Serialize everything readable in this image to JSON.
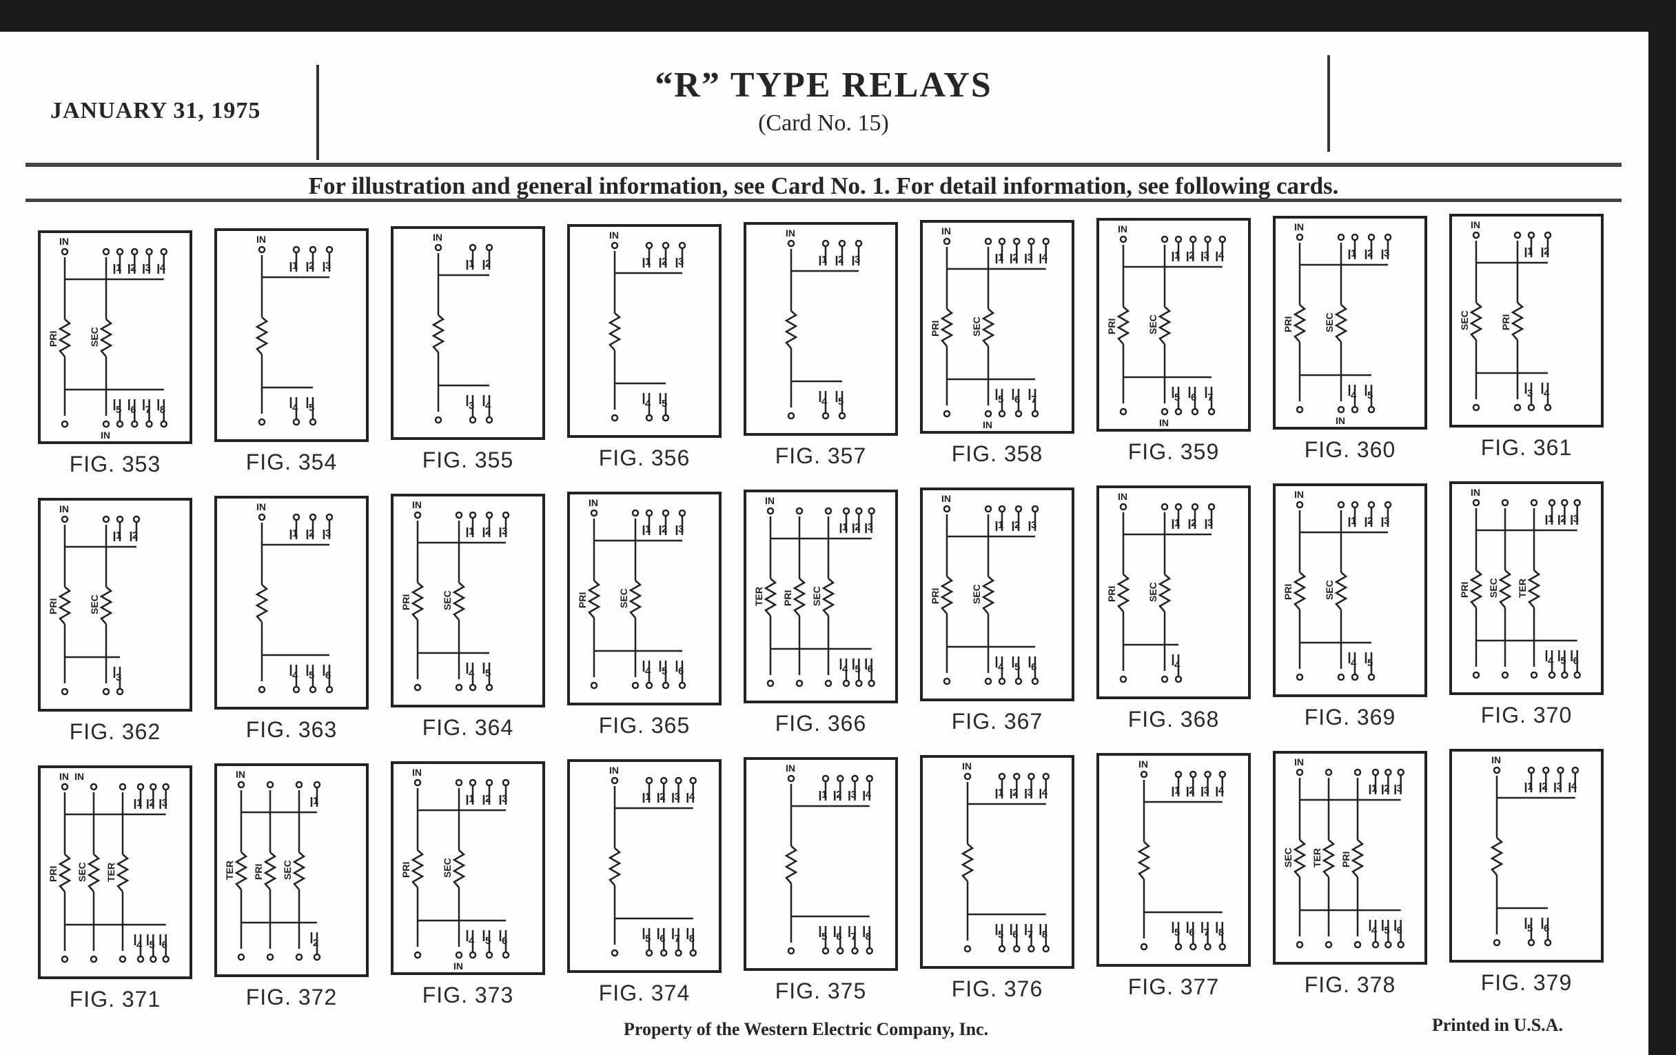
{
  "header": {
    "date": "JANUARY 31, 1975",
    "title": "“R” TYPE RELAYS",
    "subtitle": "(Card No. 15)",
    "info": "For illustration and general information, see Card No. 1.  For detail information, see following cards."
  },
  "figures": [
    {
      "label": "FIG. 353",
      "top_in": [
        "IN"
      ],
      "top": [
        "1",
        "2",
        "3",
        "4"
      ],
      "coils": [
        "PRI",
        "SEC"
      ],
      "bottom": [
        "5",
        "6",
        "7",
        "8"
      ],
      "bottom_in": "IN"
    },
    {
      "label": "FIG. 354",
      "top_in": [
        "IN"
      ],
      "top": [
        "1",
        "2",
        "3"
      ],
      "coils": [
        ""
      ],
      "bottom": [
        "4",
        "5"
      ]
    },
    {
      "label": "FIG. 355",
      "top_in": [
        "IN"
      ],
      "top": [
        "1",
        "2"
      ],
      "coils": [
        ""
      ],
      "bottom": [
        "3",
        "4"
      ]
    },
    {
      "label": "FIG. 356",
      "top_in": [
        "IN"
      ],
      "top": [
        "1",
        "2",
        "3"
      ],
      "coils": [
        ""
      ],
      "bottom": [
        "4",
        "5"
      ]
    },
    {
      "label": "FIG. 357",
      "top_in": [
        "IN"
      ],
      "top": [
        "1",
        "2",
        "3"
      ],
      "coils": [
        ""
      ],
      "bottom": [
        "4",
        "5"
      ]
    },
    {
      "label": "FIG. 358",
      "top_in": [
        "IN"
      ],
      "top": [
        "1",
        "2",
        "3",
        "4"
      ],
      "coils": [
        "PRI",
        "SEC"
      ],
      "bottom": [
        "5",
        "6",
        "7"
      ],
      "bottom_in": "IN"
    },
    {
      "label": "FIG. 359",
      "top_in": [
        "IN"
      ],
      "top": [
        "1",
        "2",
        "3",
        "4"
      ],
      "coils": [
        "PRI",
        "SEC"
      ],
      "bottom": [
        "5",
        "6",
        "7"
      ],
      "bottom_in": "IN"
    },
    {
      "label": "FIG. 360",
      "top_in": [
        "IN"
      ],
      "top": [
        "1",
        "2",
        "3"
      ],
      "coils": [
        "PRI",
        "SEC"
      ],
      "bottom": [
        "4",
        "5"
      ],
      "bottom_in": "IN"
    },
    {
      "label": "FIG. 361",
      "top_in": [
        "IN"
      ],
      "top": [
        "1",
        "2"
      ],
      "coils": [
        "SEC",
        "PRI"
      ],
      "bottom": [
        "3",
        "4"
      ]
    },
    {
      "label": "FIG. 362",
      "top_in": [
        "IN"
      ],
      "top": [
        "1",
        "2"
      ],
      "coils": [
        "PRI",
        "SEC"
      ],
      "bottom": [
        "3"
      ]
    },
    {
      "label": "FIG. 363",
      "top_in": [
        "IN"
      ],
      "top": [
        "1",
        "2",
        "3"
      ],
      "coils": [
        ""
      ],
      "bottom": [
        "4",
        "5",
        "6"
      ]
    },
    {
      "label": "FIG. 364",
      "top_in": [
        "IN"
      ],
      "top": [
        "1",
        "2",
        "3"
      ],
      "coils": [
        "PRI",
        "SEC"
      ],
      "bottom": [
        "4",
        "5"
      ]
    },
    {
      "label": "FIG. 365",
      "top_in": [
        "IN"
      ],
      "top": [
        "1",
        "2",
        "3"
      ],
      "coils": [
        "PRI",
        "SEC"
      ],
      "bottom": [
        "4",
        "5",
        "6"
      ]
    },
    {
      "label": "FIG. 366",
      "top_in": [
        "IN"
      ],
      "top": [
        "1",
        "2",
        "3"
      ],
      "coils": [
        "TER",
        "PRI",
        "SEC"
      ],
      "bottom": [
        "4",
        "5",
        "6"
      ]
    },
    {
      "label": "FIG. 367",
      "top_in": [
        "IN"
      ],
      "top": [
        "1",
        "2",
        "3"
      ],
      "coils": [
        "PRI",
        "SEC"
      ],
      "bottom": [
        "4",
        "5",
        "6"
      ]
    },
    {
      "label": "FIG. 368",
      "top_in": [
        "IN"
      ],
      "top": [
        "1",
        "2",
        "3"
      ],
      "coils": [
        "PRI",
        "SEC"
      ],
      "bottom": [
        "4"
      ]
    },
    {
      "label": "FIG. 369",
      "top_in": [
        "IN"
      ],
      "top": [
        "1",
        "2",
        "3"
      ],
      "coils": [
        "PRI",
        "SEC"
      ],
      "bottom": [
        "4",
        "5"
      ]
    },
    {
      "label": "FIG. 370",
      "top_in": [
        "IN"
      ],
      "top": [
        "1",
        "2",
        "3"
      ],
      "coils": [
        "PRI",
        "SEC",
        "TER"
      ],
      "bottom": [
        "4",
        "5",
        "6"
      ]
    },
    {
      "label": "FIG. 371",
      "top_in": [
        "IN",
        "IN"
      ],
      "top": [
        "1",
        "2",
        "3"
      ],
      "coils": [
        "PRI",
        "SEC",
        "TER"
      ],
      "bottom": [
        "4",
        "5",
        "6"
      ]
    },
    {
      "label": "FIG. 372",
      "top_in": [
        "IN"
      ],
      "top": [
        "1"
      ],
      "coils": [
        "TER",
        "PRI",
        "SEC"
      ],
      "bottom": [
        "2"
      ]
    },
    {
      "label": "FIG. 373",
      "top_in": [
        "IN"
      ],
      "top": [
        "1",
        "2",
        "3"
      ],
      "coils": [
        "PRI",
        "SEC"
      ],
      "bottom": [
        "4",
        "5",
        "6"
      ],
      "bottom_in": "IN"
    },
    {
      "label": "FIG. 374",
      "top_in": [
        "IN"
      ],
      "top": [
        "1",
        "2",
        "3",
        "4"
      ],
      "coils": [
        ""
      ],
      "bottom": [
        "5",
        "6",
        "7",
        "8"
      ]
    },
    {
      "label": "FIG. 375",
      "top_in": [
        "IN"
      ],
      "top": [
        "1",
        "2",
        "3",
        "4"
      ],
      "coils": [
        ""
      ],
      "bottom": [
        "5",
        "6",
        "7",
        "8"
      ]
    },
    {
      "label": "FIG. 376",
      "top_in": [
        "IN"
      ],
      "top": [
        "1",
        "2",
        "3",
        "4"
      ],
      "coils": [
        ""
      ],
      "bottom": [
        "5",
        "6",
        "7",
        "8"
      ]
    },
    {
      "label": "FIG. 377",
      "top_in": [
        "IN"
      ],
      "top": [
        "1",
        "2",
        "3",
        "4"
      ],
      "coils": [
        ""
      ],
      "bottom": [
        "5",
        "6",
        "7",
        "8"
      ]
    },
    {
      "label": "FIG. 378",
      "top_in": [
        "IN"
      ],
      "top": [
        "1",
        "2",
        "3"
      ],
      "coils": [
        "SEC",
        "TER",
        "PRI"
      ],
      "bottom": [
        "4",
        "5",
        "6"
      ]
    },
    {
      "label": "FIG. 379",
      "top_in": [
        "IN"
      ],
      "top": [
        "1",
        "2",
        "3",
        "4"
      ],
      "coils": [
        ""
      ],
      "bottom": [
        "5",
        "6"
      ]
    }
  ],
  "footer": {
    "property": "Property of the Western Electric Company, Inc.",
    "printed": "Printed in U.S.A."
  }
}
